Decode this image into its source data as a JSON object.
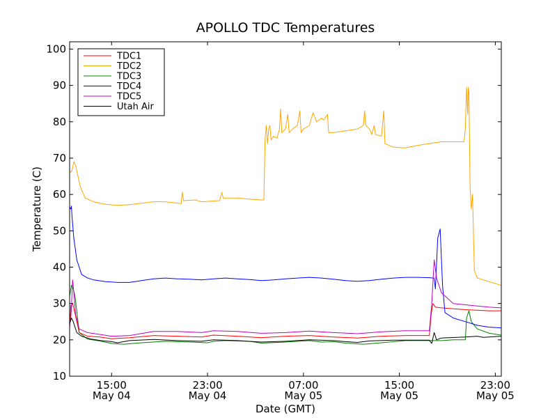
{
  "chart_data": {
    "type": "line",
    "title": "APOLLO TDC Temperatures",
    "xlabel": "Date (GMT)",
    "ylabel": "Temperature (C)",
    "ylim": [
      10,
      102
    ],
    "xlim_hours": [
      0,
      36
    ],
    "yticks": [
      10,
      20,
      30,
      40,
      50,
      60,
      70,
      80,
      90,
      100
    ],
    "xticks": [
      {
        "hour": 3.5,
        "time": "15:00",
        "date": "May 04"
      },
      {
        "hour": 11.5,
        "time": "23:00",
        "date": "May 04"
      },
      {
        "hour": 19.5,
        "time": "07:00",
        "date": "May 05"
      },
      {
        "hour": 27.5,
        "time": "15:00",
        "date": "May 05"
      },
      {
        "hour": 35.5,
        "time": "23:00",
        "date": "May 05"
      }
    ],
    "legend": "top-left",
    "grid": false,
    "series": [
      {
        "name": "TDC1",
        "color": "#ff0000",
        "points": [
          [
            0,
            23
          ],
          [
            0.1,
            29.5
          ],
          [
            0.25,
            30
          ],
          [
            0.4,
            28
          ],
          [
            0.8,
            22
          ],
          [
            1.5,
            21
          ],
          [
            2.5,
            20.8
          ],
          [
            3.5,
            20.3
          ],
          [
            5,
            20.6
          ],
          [
            7,
            21.2
          ],
          [
            9,
            21
          ],
          [
            11,
            20.8
          ],
          [
            12,
            21.3
          ],
          [
            14,
            21
          ],
          [
            16,
            20.6
          ],
          [
            18,
            21
          ],
          [
            20,
            21.2
          ],
          [
            22,
            20.8
          ],
          [
            24,
            20.5
          ],
          [
            26,
            21
          ],
          [
            28,
            21.2
          ],
          [
            30,
            21.2
          ],
          [
            30.15,
            27
          ],
          [
            30.3,
            30
          ],
          [
            30.5,
            29
          ],
          [
            31,
            28.8
          ],
          [
            33,
            28.3
          ],
          [
            35,
            28
          ],
          [
            36,
            28
          ]
        ]
      },
      {
        "name": "TDC2",
        "color": "#ffa500",
        "points": [
          [
            0,
            66
          ],
          [
            0.2,
            66.5
          ],
          [
            0.35,
            69
          ],
          [
            0.5,
            68
          ],
          [
            0.9,
            62
          ],
          [
            1.3,
            59
          ],
          [
            2,
            58
          ],
          [
            3,
            57.3
          ],
          [
            4,
            57
          ],
          [
            5,
            57.2
          ],
          [
            6,
            57.6
          ],
          [
            7,
            58
          ],
          [
            8,
            58
          ],
          [
            9.3,
            57.5
          ],
          [
            9.4,
            60.6
          ],
          [
            9.5,
            58.3
          ],
          [
            10.5,
            58.5
          ],
          [
            11,
            58
          ],
          [
            12,
            58.2
          ],
          [
            12.5,
            58.3
          ],
          [
            12.7,
            60.6
          ],
          [
            12.8,
            59
          ],
          [
            14,
            59
          ],
          [
            15,
            58.7
          ],
          [
            16,
            58.5
          ],
          [
            16.2,
            58.5
          ],
          [
            16.3,
            75
          ],
          [
            16.4,
            79
          ],
          [
            16.5,
            74
          ],
          [
            16.6,
            78
          ],
          [
            16.7,
            79
          ],
          [
            16.8,
            75
          ],
          [
            17,
            76
          ],
          [
            17.3,
            75.5
          ],
          [
            17.5,
            78
          ],
          [
            17.6,
            83.5
          ],
          [
            17.7,
            77
          ],
          [
            18,
            78
          ],
          [
            18.2,
            82
          ],
          [
            18.3,
            77
          ],
          [
            18.6,
            78
          ],
          [
            19,
            79
          ],
          [
            19.2,
            83
          ],
          [
            19.3,
            77
          ],
          [
            19.5,
            78
          ],
          [
            20,
            79
          ],
          [
            20.3,
            82.5
          ],
          [
            20.6,
            80
          ],
          [
            21,
            81
          ],
          [
            21.2,
            80.5
          ],
          [
            21.5,
            82
          ],
          [
            21.6,
            77
          ],
          [
            22,
            77
          ],
          [
            23,
            77.5
          ],
          [
            24,
            78
          ],
          [
            24.5,
            79
          ],
          [
            24.6,
            83
          ],
          [
            24.7,
            79
          ],
          [
            25,
            78
          ],
          [
            25.2,
            76.5
          ],
          [
            25.4,
            79
          ],
          [
            25.5,
            76.5
          ],
          [
            26,
            76
          ],
          [
            26.2,
            83
          ],
          [
            26.3,
            74
          ],
          [
            27,
            73
          ],
          [
            28,
            72.8
          ],
          [
            29,
            73.5
          ],
          [
            30,
            74
          ],
          [
            31,
            74.5
          ],
          [
            32,
            74.5
          ],
          [
            32.9,
            74.5
          ],
          [
            33,
            78
          ],
          [
            33.1,
            89.5
          ],
          [
            33.2,
            82
          ],
          [
            33.25,
            89.5
          ],
          [
            33.3,
            88
          ],
          [
            33.4,
            62
          ],
          [
            33.5,
            56
          ],
          [
            33.6,
            60
          ],
          [
            33.75,
            39
          ],
          [
            34,
            37
          ],
          [
            35,
            36
          ],
          [
            36,
            35
          ],
          [
            36.5,
            35
          ]
        ]
      },
      {
        "name": "TDC3",
        "color": "#008000",
        "points": [
          [
            0,
            32
          ],
          [
            0.15,
            35
          ],
          [
            0.3,
            34
          ],
          [
            0.45,
            32
          ],
          [
            0.8,
            22
          ],
          [
            1.5,
            20.2
          ],
          [
            2.5,
            19.7
          ],
          [
            3.5,
            19
          ],
          [
            4.5,
            18.8
          ],
          [
            6,
            19.2
          ],
          [
            8,
            19.6
          ],
          [
            10,
            19.4
          ],
          [
            11.5,
            19.2
          ],
          [
            12,
            19.6
          ],
          [
            13,
            19.8
          ],
          [
            15,
            19.6
          ],
          [
            16,
            19.1
          ],
          [
            18,
            19.4
          ],
          [
            20,
            19.8
          ],
          [
            21,
            19.4
          ],
          [
            22,
            19.5
          ],
          [
            23,
            19.1
          ],
          [
            24.5,
            18.8
          ],
          [
            26,
            19.2
          ],
          [
            28,
            19.8
          ],
          [
            31,
            19.8
          ],
          [
            32,
            20
          ],
          [
            33,
            20
          ],
          [
            33.1,
            26
          ],
          [
            33.3,
            28
          ],
          [
            33.5,
            25
          ],
          [
            34,
            23
          ],
          [
            35,
            21.8
          ],
          [
            36,
            21.3
          ],
          [
            36.5,
            21.2
          ]
        ]
      },
      {
        "name": "TDC4",
        "color": "#0000ff",
        "points": [
          [
            0,
            56.5
          ],
          [
            0.1,
            56
          ],
          [
            0.15,
            56.8
          ],
          [
            0.2,
            54
          ],
          [
            0.35,
            48
          ],
          [
            0.6,
            42
          ],
          [
            1,
            38
          ],
          [
            1.5,
            37
          ],
          [
            2,
            36.5
          ],
          [
            3,
            36
          ],
          [
            4,
            35.8
          ],
          [
            5,
            35.8
          ],
          [
            6,
            36.3
          ],
          [
            7,
            36.8
          ],
          [
            8,
            37
          ],
          [
            9,
            36.8
          ],
          [
            10,
            36.7
          ],
          [
            11,
            36.5
          ],
          [
            12,
            36.8
          ],
          [
            13,
            37
          ],
          [
            14,
            36.8
          ],
          [
            15,
            36.6
          ],
          [
            16,
            36.3
          ],
          [
            17,
            36.5
          ],
          [
            18,
            36.8
          ],
          [
            19,
            37
          ],
          [
            20,
            37.2
          ],
          [
            21,
            37
          ],
          [
            22,
            36.7
          ],
          [
            23,
            36.3
          ],
          [
            24,
            36.1
          ],
          [
            25,
            36.3
          ],
          [
            26,
            36.7
          ],
          [
            27,
            37
          ],
          [
            28,
            37.2
          ],
          [
            29,
            37.2
          ],
          [
            30,
            37.1
          ],
          [
            30.4,
            37
          ],
          [
            30.5,
            34
          ],
          [
            30.55,
            37
          ],
          [
            30.7,
            48
          ],
          [
            30.9,
            50.5
          ],
          [
            31.1,
            35
          ],
          [
            31.3,
            27.5
          ],
          [
            32,
            26
          ],
          [
            33,
            25
          ],
          [
            34,
            24
          ],
          [
            35,
            23.5
          ],
          [
            36,
            23.3
          ],
          [
            36.5,
            23.3
          ]
        ]
      },
      {
        "name": "TDC5",
        "color": "#bf00bf",
        "points": [
          [
            0,
            24
          ],
          [
            0.1,
            26
          ],
          [
            0.15,
            29
          ],
          [
            0.25,
            36.5
          ],
          [
            0.35,
            33
          ],
          [
            0.5,
            27
          ],
          [
            0.8,
            23
          ],
          [
            1.5,
            22
          ],
          [
            2.5,
            21.5
          ],
          [
            3.5,
            21
          ],
          [
            5,
            21.2
          ],
          [
            7,
            22.3
          ],
          [
            9,
            22.3
          ],
          [
            11,
            22
          ],
          [
            12,
            22.5
          ],
          [
            14,
            22.3
          ],
          [
            16,
            21.8
          ],
          [
            18,
            22
          ],
          [
            20,
            22.4
          ],
          [
            22,
            22
          ],
          [
            24,
            21.7
          ],
          [
            26,
            22.2
          ],
          [
            28,
            22.5
          ],
          [
            30,
            22.5
          ],
          [
            30.2,
            30
          ],
          [
            30.4,
            42
          ],
          [
            30.6,
            37
          ],
          [
            31,
            33
          ],
          [
            32,
            30
          ],
          [
            34,
            29.3
          ],
          [
            35,
            29
          ],
          [
            36,
            28.8
          ],
          [
            36.5,
            28.8
          ]
        ]
      },
      {
        "name": "Utah Air",
        "color": "#000000",
        "points": [
          [
            0,
            24.5
          ],
          [
            0.15,
            26
          ],
          [
            0.3,
            25
          ],
          [
            0.6,
            22
          ],
          [
            1,
            21
          ],
          [
            1.8,
            20.2
          ],
          [
            2.6,
            19.8
          ],
          [
            3.5,
            19.5
          ],
          [
            4,
            19.2
          ],
          [
            5,
            19.8
          ],
          [
            7,
            20.1
          ],
          [
            9,
            19.8
          ],
          [
            11,
            19.6
          ],
          [
            12,
            20
          ],
          [
            14,
            19.8
          ],
          [
            16,
            19.4
          ],
          [
            18,
            19.6
          ],
          [
            20,
            20
          ],
          [
            22,
            19.8
          ],
          [
            23,
            19.5
          ],
          [
            24,
            19.3
          ],
          [
            25,
            19.7
          ],
          [
            27,
            19.9
          ],
          [
            28,
            19.9
          ],
          [
            30,
            19.9
          ],
          [
            30.2,
            19
          ],
          [
            30.4,
            22
          ],
          [
            30.6,
            20
          ],
          [
            31,
            20.5
          ],
          [
            33,
            20.8
          ],
          [
            34,
            21
          ],
          [
            34.5,
            20.7
          ],
          [
            36,
            21
          ],
          [
            36.5,
            21
          ]
        ]
      }
    ]
  }
}
